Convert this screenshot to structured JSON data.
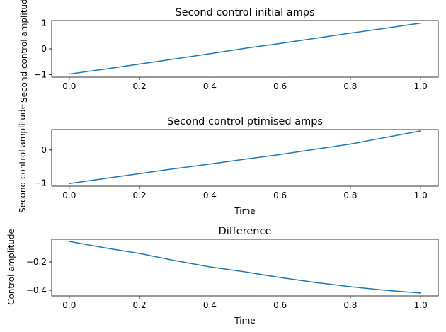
{
  "figure": {
    "background": "#ffffff",
    "line_color": "#1f77b4"
  },
  "chart_data": [
    {
      "type": "line",
      "title": "Second control initial amps",
      "xlabel": "",
      "ylabel": "Second control amplitude",
      "xlim": [
        -0.05,
        1.05
      ],
      "ylim": [
        -1.1,
        1.1
      ],
      "xticks": [
        0.0,
        0.2,
        0.4,
        0.6,
        0.8,
        1.0
      ],
      "xtick_labels": [
        "0.0",
        "0.2",
        "0.4",
        "0.6",
        "0.8",
        "1.0"
      ],
      "yticks": [
        -1,
        0,
        1
      ],
      "ytick_labels": [
        "−1",
        "0",
        "1"
      ],
      "grid": false,
      "series": [
        {
          "x": [
            0.0,
            0.1,
            0.2,
            0.3,
            0.4,
            0.5,
            0.6,
            0.7,
            0.8,
            0.9,
            1.0
          ],
          "y": [
            -0.98,
            -0.79,
            -0.59,
            -0.39,
            -0.19,
            0.02,
            0.21,
            0.41,
            0.61,
            0.8,
            1.0
          ]
        }
      ]
    },
    {
      "type": "line",
      "title": "Second control ptimised amps",
      "xlabel": "Time",
      "ylabel": "Second control amplitude",
      "xlim": [
        -0.05,
        1.05
      ],
      "ylim": [
        -1.1,
        0.62
      ],
      "xticks": [
        0.0,
        0.2,
        0.4,
        0.6,
        0.8,
        1.0
      ],
      "xtick_labels": [
        "0.0",
        "0.2",
        "0.4",
        "0.6",
        "0.8",
        "1.0"
      ],
      "yticks": [
        -1,
        0
      ],
      "ytick_labels": [
        "−1",
        "0"
      ],
      "grid": false,
      "series": [
        {
          "x": [
            0.0,
            0.1,
            0.2,
            0.3,
            0.4,
            0.5,
            0.6,
            0.7,
            0.8,
            0.9,
            1.0
          ],
          "y": [
            -1.02,
            -0.87,
            -0.72,
            -0.57,
            -0.43,
            -0.28,
            -0.14,
            0.02,
            0.18,
            0.38,
            0.58
          ]
        }
      ]
    },
    {
      "type": "line",
      "title": "Difference",
      "xlabel": "Time",
      "ylabel": "Control amplitude",
      "xlim": [
        -0.05,
        1.05
      ],
      "ylim": [
        -0.44,
        -0.04
      ],
      "xticks": [
        0.0,
        0.2,
        0.4,
        0.6,
        0.8,
        1.0
      ],
      "xtick_labels": [
        "0.0",
        "0.2",
        "0.4",
        "0.6",
        "0.8",
        "1.0"
      ],
      "yticks": [
        -0.2,
        -0.4
      ],
      "ytick_labels": [
        "−0.2",
        "−0.4"
      ],
      "grid": false,
      "series": [
        {
          "x": [
            0.0,
            0.1,
            0.2,
            0.3,
            0.4,
            0.5,
            0.6,
            0.7,
            0.8,
            0.9,
            1.0
          ],
          "y": [
            -0.055,
            -0.1,
            -0.14,
            -0.19,
            -0.235,
            -0.27,
            -0.31,
            -0.345,
            -0.375,
            -0.4,
            -0.42
          ]
        }
      ]
    }
  ]
}
